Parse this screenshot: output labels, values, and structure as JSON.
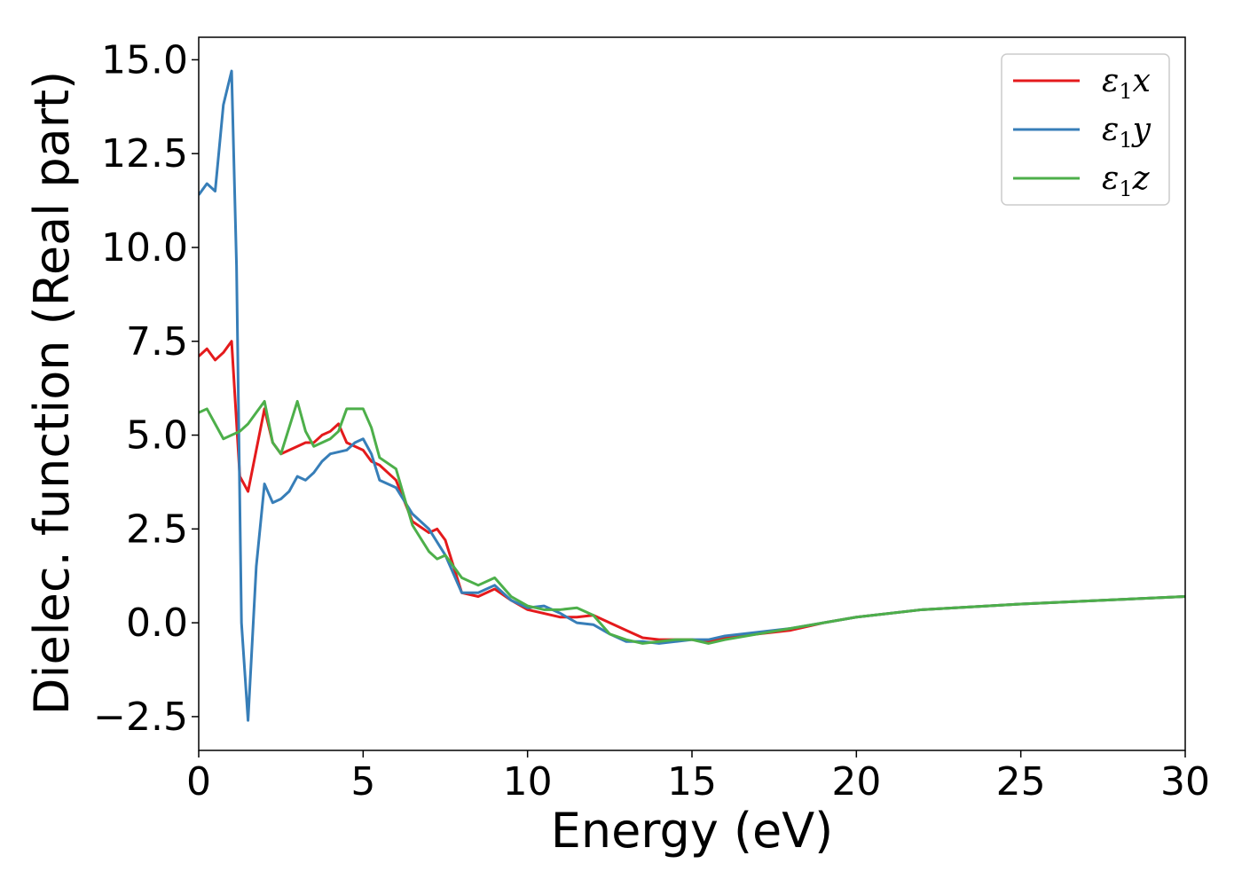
{
  "chart_data": {
    "type": "line",
    "xlabel": "Energy (eV)",
    "ylabel": "Dielec. function (Real part)",
    "xlim": [
      0,
      30
    ],
    "ylim": [
      -3.4,
      15.6
    ],
    "xticks": [
      0,
      5,
      10,
      15,
      20,
      25,
      30
    ],
    "xtick_labels": [
      "0",
      "5",
      "10",
      "15",
      "20",
      "25",
      "30"
    ],
    "yticks": [
      -2.5,
      0,
      2.5,
      5,
      7.5,
      10,
      12.5,
      15
    ],
    "ytick_labels": [
      "−2.5",
      "0.0",
      "2.5",
      "5.0",
      "7.5",
      "10.0",
      "12.5",
      "15.0"
    ],
    "grid": false,
    "legend_position": "top-right",
    "series": [
      {
        "name": "ε1x",
        "legend_symbol": "ε",
        "legend_sub": "1",
        "legend_var": "x",
        "color": "#e41a1c",
        "x": [
          0,
          0.25,
          0.5,
          0.75,
          1.0,
          1.25,
          1.5,
          1.75,
          2.0,
          2.25,
          2.5,
          2.75,
          3.0,
          3.25,
          3.5,
          3.75,
          4.0,
          4.25,
          4.5,
          4.75,
          5.0,
          5.25,
          5.5,
          6.0,
          6.5,
          7.0,
          7.25,
          7.5,
          8.0,
          8.5,
          9.0,
          9.5,
          10.0,
          10.5,
          11.0,
          11.5,
          12.0,
          12.5,
          13.0,
          13.5,
          14.0,
          14.5,
          15.0,
          15.5,
          16.0,
          17.0,
          18.0,
          19.0,
          20.0,
          22.0,
          25.0,
          28.0,
          30.0
        ],
        "y": [
          7.1,
          7.3,
          7.0,
          7.2,
          7.5,
          3.9,
          3.5,
          4.6,
          5.7,
          4.8,
          4.5,
          4.6,
          4.7,
          4.8,
          4.8,
          5.0,
          5.1,
          5.3,
          4.8,
          4.7,
          4.6,
          4.3,
          4.2,
          3.8,
          2.7,
          2.4,
          2.5,
          2.2,
          0.8,
          0.7,
          0.9,
          0.6,
          0.35,
          0.25,
          0.15,
          0.15,
          0.2,
          0.0,
          -0.2,
          -0.4,
          -0.45,
          -0.45,
          -0.45,
          -0.5,
          -0.4,
          -0.3,
          -0.2,
          0.0,
          0.15,
          0.35,
          0.5,
          0.62,
          0.7
        ]
      },
      {
        "name": "ε1y",
        "legend_symbol": "ε",
        "legend_sub": "1",
        "legend_var": "y",
        "color": "#377eb8",
        "x": [
          0,
          0.25,
          0.5,
          0.75,
          1.0,
          1.15,
          1.3,
          1.5,
          1.75,
          2.0,
          2.25,
          2.5,
          2.75,
          3.0,
          3.25,
          3.5,
          3.75,
          4.0,
          4.25,
          4.5,
          4.75,
          5.0,
          5.25,
          5.5,
          6.0,
          6.5,
          7.0,
          7.5,
          8.0,
          8.5,
          9.0,
          9.5,
          10.0,
          10.5,
          11.0,
          11.5,
          12.0,
          12.5,
          13.0,
          13.5,
          14.0,
          14.5,
          15.0,
          15.5,
          16.0,
          17.0,
          18.0,
          19.0,
          20.0,
          22.0,
          25.0,
          28.0,
          30.0
        ],
        "y": [
          11.4,
          11.7,
          11.5,
          13.8,
          14.7,
          9.5,
          0.0,
          -2.6,
          1.5,
          3.7,
          3.2,
          3.3,
          3.5,
          3.9,
          3.8,
          4.0,
          4.3,
          4.5,
          4.55,
          4.6,
          4.8,
          4.9,
          4.5,
          3.8,
          3.6,
          2.9,
          2.5,
          1.8,
          0.8,
          0.8,
          1.0,
          0.6,
          0.4,
          0.45,
          0.25,
          0.0,
          -0.05,
          -0.3,
          -0.5,
          -0.5,
          -0.55,
          -0.5,
          -0.45,
          -0.45,
          -0.35,
          -0.25,
          -0.15,
          0.0,
          0.15,
          0.35,
          0.5,
          0.62,
          0.7
        ]
      },
      {
        "name": "ε1z",
        "legend_symbol": "ε",
        "legend_sub": "1",
        "legend_var": "z",
        "color": "#4daf4a",
        "x": [
          0,
          0.25,
          0.5,
          0.75,
          1.0,
          1.25,
          1.5,
          1.75,
          2.0,
          2.25,
          2.5,
          2.75,
          3.0,
          3.25,
          3.5,
          3.75,
          4.0,
          4.25,
          4.5,
          4.75,
          5.0,
          5.25,
          5.5,
          6.0,
          6.5,
          7.0,
          7.25,
          7.5,
          8.0,
          8.5,
          9.0,
          9.5,
          10.0,
          10.5,
          11.0,
          11.5,
          12.0,
          12.5,
          13.0,
          13.5,
          14.0,
          14.5,
          15.0,
          15.5,
          16.0,
          17.0,
          18.0,
          19.0,
          20.0,
          22.0,
          25.0,
          28.0,
          30.0
        ],
        "y": [
          5.6,
          5.7,
          5.3,
          4.9,
          5.0,
          5.1,
          5.3,
          5.6,
          5.9,
          4.8,
          4.5,
          5.2,
          5.9,
          5.1,
          4.7,
          4.8,
          4.9,
          5.1,
          5.7,
          5.7,
          5.7,
          5.2,
          4.4,
          4.1,
          2.6,
          1.9,
          1.7,
          1.8,
          1.2,
          1.0,
          1.2,
          0.7,
          0.45,
          0.35,
          0.35,
          0.4,
          0.2,
          -0.3,
          -0.45,
          -0.55,
          -0.5,
          -0.45,
          -0.45,
          -0.55,
          -0.45,
          -0.3,
          -0.15,
          0.0,
          0.15,
          0.35,
          0.5,
          0.62,
          0.7
        ]
      }
    ]
  }
}
